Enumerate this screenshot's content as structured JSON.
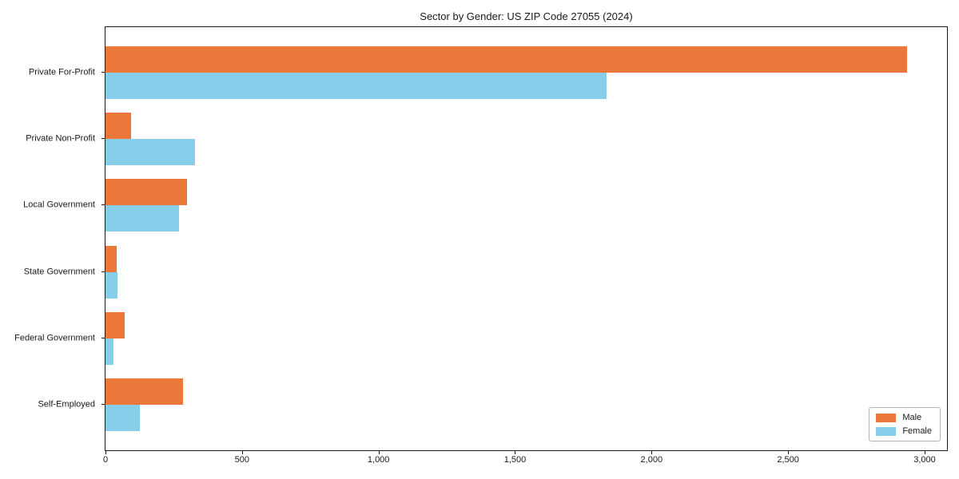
{
  "chart_data": {
    "type": "bar",
    "orientation": "horizontal",
    "title": "Sector by Gender: US ZIP Code 27055 (2024)",
    "categories": [
      "Private For-Profit",
      "Private Non-Profit",
      "Local Government",
      "State Government",
      "Federal Government",
      "Self-Employed"
    ],
    "series": [
      {
        "name": "Male",
        "color": "#ec773b",
        "values": [
          2935,
          93,
          299,
          40,
          71,
          284
        ]
      },
      {
        "name": "Female",
        "color": "#87ceeb",
        "values": [
          1835,
          329,
          270,
          44,
          29,
          126
        ]
      }
    ],
    "xlim": [
      0,
      3082
    ],
    "x_ticks": [
      0,
      500,
      1000,
      1500,
      2000,
      2500,
      3000
    ],
    "x_tick_labels": [
      "0",
      "500",
      "1,000",
      "1,500",
      "2,000",
      "2,500",
      "3,000"
    ],
    "ylabel": "",
    "xlabel": "",
    "grid": false,
    "legend_position": "lower right",
    "spine_color": "#1a1a1a",
    "background_color": "#ffffff"
  }
}
